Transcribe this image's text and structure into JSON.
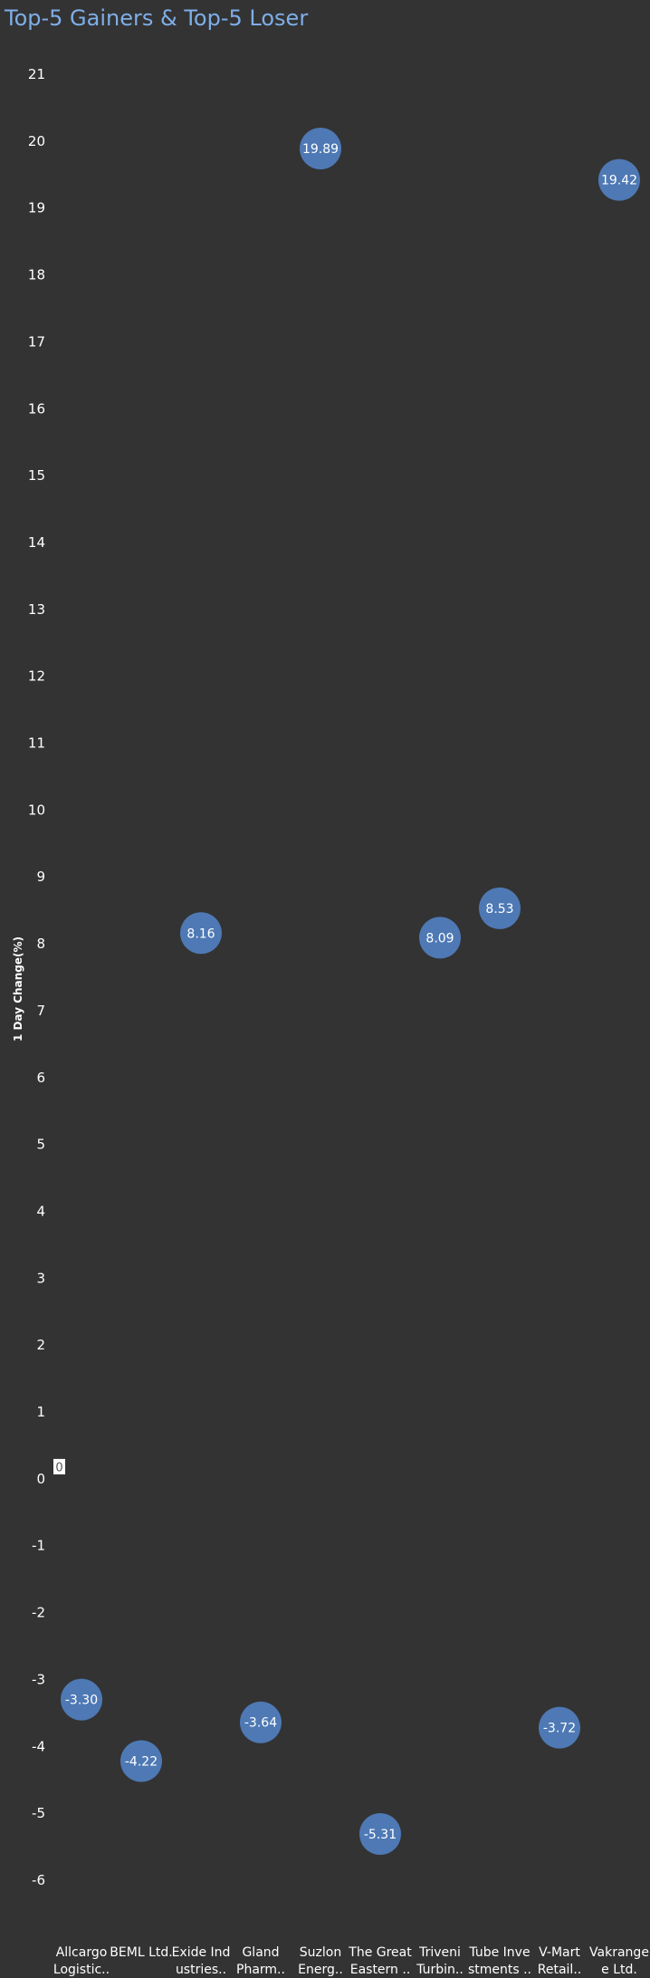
{
  "title": "Top-5 Gainers & Top-5 Loser",
  "chart_data": {
    "type": "scatter",
    "title": "Top-5 Gainers & Top-5 Loser",
    "ylabel": "1 Day Change(%)",
    "xlabel": "",
    "ylim": [
      -6,
      21
    ],
    "yticks": [
      21,
      20,
      19,
      18,
      17,
      16,
      15,
      14,
      13,
      12,
      11,
      10,
      9,
      8,
      7,
      6,
      5,
      4,
      3,
      2,
      1,
      0,
      -1,
      -2,
      -3,
      -4,
      -5,
      -6
    ],
    "grid": false,
    "reference_line_label": "0",
    "marker_color": "#4e79b5",
    "categories": [
      {
        "line1": "Allcargo",
        "line2": "Logistic.."
      },
      {
        "line1": "BEML Ltd.",
        "line2": ""
      },
      {
        "line1": "Exide Ind",
        "line2": "ustries.."
      },
      {
        "line1": "Gland",
        "line2": "Pharm.."
      },
      {
        "line1": "Suzlon",
        "line2": "Energ.."
      },
      {
        "line1": "The Great",
        "line2": "Eastern .."
      },
      {
        "line1": "Triveni",
        "line2": "Turbin.."
      },
      {
        "line1": "Tube Inve",
        "line2": "stments .."
      },
      {
        "line1": "V-Mart",
        "line2": "Retail.."
      },
      {
        "line1": "Vakrange",
        "line2": "e Ltd."
      }
    ],
    "values": [
      -3.3,
      -4.22,
      8.16,
      -3.64,
      19.89,
      -5.31,
      8.09,
      8.53,
      -3.72,
      19.42
    ],
    "labels": [
      "-3.30",
      "-4.22",
      "8.16",
      "-3.64",
      "19.89",
      "-5.31",
      "8.09",
      "8.53",
      "-3.72",
      "19.42"
    ]
  }
}
